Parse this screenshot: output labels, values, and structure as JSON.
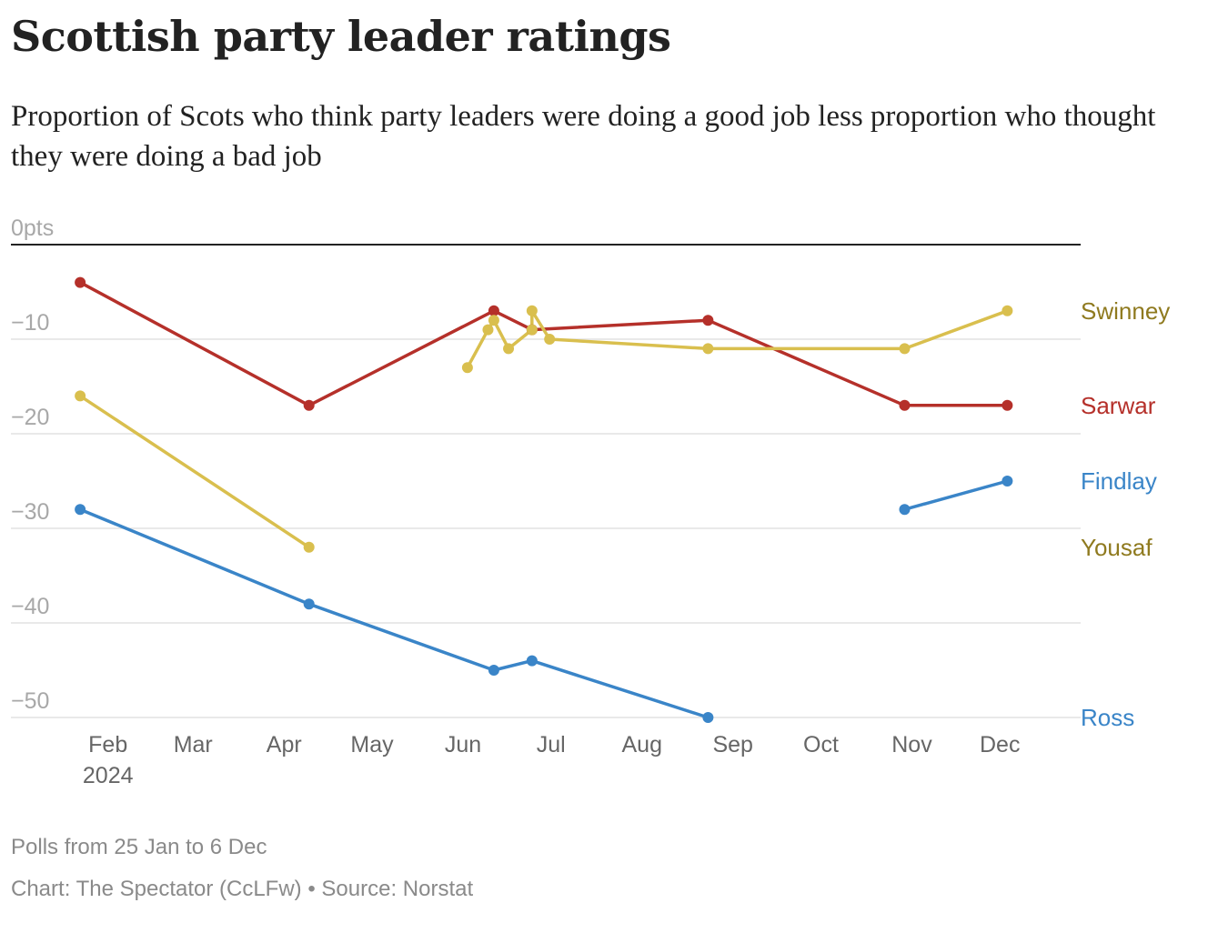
{
  "title": "Scottish party leader ratings",
  "subtitle": "Proportion of Scots who think party leaders were doing a good job less proportion who thought they were doing a bad job",
  "notes": "Polls from 25 Jan to 6 Dec",
  "credit": "Chart: The Spectator (CcLFw) • Source: Norstat",
  "chart_data": {
    "type": "line",
    "y_unit": "pts",
    "ylim": [
      -50,
      0
    ],
    "yticks": [
      {
        "value": 0,
        "label": "0pts"
      },
      {
        "value": -10,
        "label": "−10"
      },
      {
        "value": -20,
        "label": "−20"
      },
      {
        "value": -30,
        "label": "−30"
      },
      {
        "value": -40,
        "label": "−40"
      },
      {
        "value": -50,
        "label": "−50"
      }
    ],
    "xlim": [
      "2024-01-20",
      "2024-12-31"
    ],
    "xticks": [
      {
        "date": "2024-02-01",
        "label": "Feb",
        "sub": "2024"
      },
      {
        "date": "2024-03-01",
        "label": "Mar"
      },
      {
        "date": "2024-04-01",
        "label": "Apr"
      },
      {
        "date": "2024-05-01",
        "label": "May"
      },
      {
        "date": "2024-06-01",
        "label": "Jun"
      },
      {
        "date": "2024-07-01",
        "label": "Jul"
      },
      {
        "date": "2024-08-01",
        "label": "Aug"
      },
      {
        "date": "2024-09-01",
        "label": "Sep"
      },
      {
        "date": "2024-10-01",
        "label": "Oct"
      },
      {
        "date": "2024-11-01",
        "label": "Nov"
      },
      {
        "date": "2024-12-01",
        "label": "Dec"
      }
    ],
    "grid": true,
    "series": [
      {
        "name": "Sarwar",
        "color": "#b5302a",
        "label_color": "#b5302a",
        "label_value": -17,
        "segments": [
          [
            [
              "2024-01-25",
              -4
            ],
            [
              "2024-04-12",
              -17
            ],
            [
              "2024-06-14",
              -7
            ],
            [
              "2024-06-27",
              -9
            ],
            [
              "2024-08-26",
              -8
            ],
            [
              "2024-11-01",
              -17
            ],
            [
              "2024-12-06",
              -17
            ]
          ]
        ]
      },
      {
        "name": "Yousaf",
        "color": "#d9bf4e",
        "label_color": "#8f7a1f",
        "label_value": -32,
        "segments": [
          [
            [
              "2024-01-25",
              -16
            ],
            [
              "2024-04-12",
              -32
            ]
          ]
        ]
      },
      {
        "name": "Swinney",
        "color": "#d9bf4e",
        "label_color": "#8f7a1f",
        "label_value": -7,
        "segments": [
          [
            [
              "2024-06-05",
              -13
            ],
            [
              "2024-06-12",
              -9
            ],
            [
              "2024-06-14",
              -8
            ],
            [
              "2024-06-19",
              -11
            ],
            [
              "2024-06-27",
              -9
            ],
            [
              "2024-06-27",
              -7
            ],
            [
              "2024-07-03",
              -10
            ],
            [
              "2024-08-26",
              -11
            ],
            [
              "2024-11-01",
              -11
            ],
            [
              "2024-12-06",
              -7
            ]
          ]
        ]
      },
      {
        "name": "Ross",
        "color": "#3a85c8",
        "label_color": "#3a85c8",
        "label_value": -50,
        "segments": [
          [
            [
              "2024-01-25",
              -28
            ],
            [
              "2024-04-12",
              -38
            ],
            [
              "2024-06-14",
              -45
            ],
            [
              "2024-06-27",
              -44
            ],
            [
              "2024-08-26",
              -50
            ]
          ]
        ]
      },
      {
        "name": "Findlay",
        "color": "#3a85c8",
        "label_color": "#3a85c8",
        "label_value": -25,
        "segments": [
          [
            [
              "2024-11-01",
              -28
            ],
            [
              "2024-12-06",
              -25
            ]
          ]
        ]
      }
    ]
  }
}
